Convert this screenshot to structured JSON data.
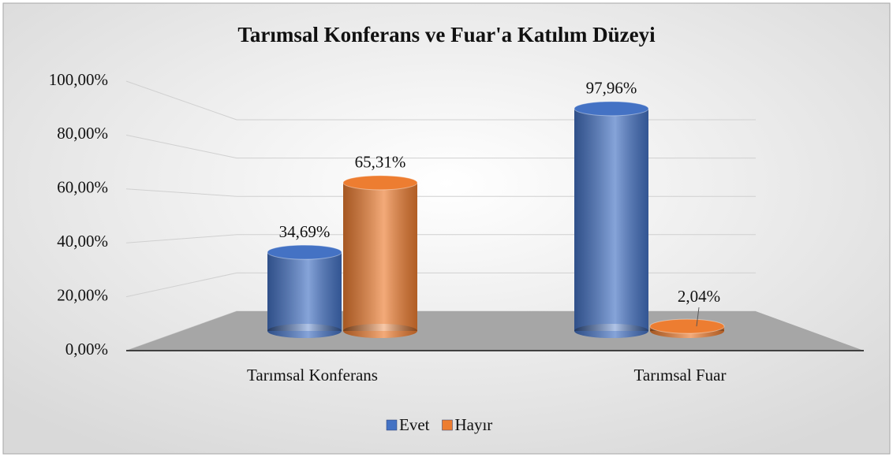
{
  "chart_data": {
    "type": "bar3d",
    "title": "Tarımsal Konferans ve Fuar'a Katılım Düzeyi",
    "categories": [
      "Tarımsal Konferans",
      "Tarımsal Fuar"
    ],
    "series": [
      {
        "name": "Evet",
        "color": "#4472c4",
        "values": [
          34.69,
          97.96
        ],
        "value_labels": [
          "34,69%",
          "97,96%"
        ]
      },
      {
        "name": "Hayır",
        "color": "#ed7d31",
        "values": [
          65.31,
          2.04
        ],
        "value_labels": [
          "65,31%",
          "2,04%"
        ]
      }
    ],
    "ylim": [
      0,
      100
    ],
    "yticks": [
      {
        "value": 0,
        "label": "0,00%"
      },
      {
        "value": 20,
        "label": "20,00%"
      },
      {
        "value": 40,
        "label": "40,00%"
      },
      {
        "value": 60,
        "label": "60,00%"
      },
      {
        "value": 80,
        "label": "80,00%"
      },
      {
        "value": 100,
        "label": "100,00%"
      }
    ],
    "grid": true,
    "legend": "bottom"
  }
}
